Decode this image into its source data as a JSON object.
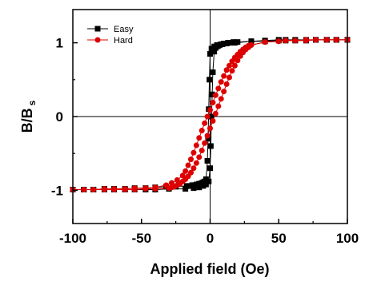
{
  "chart_data": {
    "type": "scatter",
    "xlabel": "Applied field (Oe)",
    "ylabel_main": "B/B",
    "ylabel_sub": "s",
    "xlim": [
      -100,
      100
    ],
    "ylim": [
      -1.45,
      1.45
    ],
    "xticks": [
      -100,
      -50,
      0,
      50,
      100
    ],
    "xtick_labels": [
      "-100",
      "-50",
      "0",
      "50",
      "100"
    ],
    "yticks": [
      -1,
      0,
      1
    ],
    "ytick_labels": [
      "-1",
      "0",
      "1"
    ],
    "reference_lines": {
      "x": 0,
      "y": 0
    },
    "legend_position": "top-left",
    "series": [
      {
        "name": "Easy",
        "color": "#000000",
        "marker": "square",
        "branches": [
          {
            "x": [
              -100,
              -92,
              -85,
              -77,
              -70,
              -62,
              -55,
              -47,
              -40,
              -32,
              -25,
              -17,
              -13,
              -12,
              -11,
              -10,
              -9,
              -8,
              -7,
              -6,
              -5,
              -4,
              -3,
              -2,
              -1.5,
              -1,
              -0.5,
              0,
              1,
              3,
              5,
              8,
              12,
              18,
              30,
              40,
              50,
              55,
              62,
              70,
              77,
              85,
              92,
              100
            ],
            "y": [
              -0.99,
              -0.99,
              -0.99,
              -0.98,
              -0.98,
              -0.98,
              -0.97,
              -0.97,
              -0.96,
              -0.95,
              -0.95,
              -0.94,
              -0.93,
              -0.93,
              -0.93,
              -0.92,
              -0.92,
              -0.91,
              -0.91,
              -0.9,
              -0.89,
              -0.88,
              -0.85,
              -0.6,
              -0.3,
              0.1,
              0.5,
              0.85,
              0.92,
              0.95,
              0.97,
              0.98,
              0.99,
              1.0,
              1.02,
              1.03,
              1.04,
              1.04,
              1.04,
              1.04,
              1.04,
              1.04,
              1.04,
              1.04
            ]
          },
          {
            "x": [
              100,
              92,
              85,
              77,
              70,
              62,
              55,
              50,
              40,
              30,
              20,
              17,
              15,
              13,
              12,
              11,
              10,
              9,
              8,
              7,
              6,
              5,
              4,
              3,
              2,
              1.5,
              1,
              0.5,
              0,
              -1,
              -3,
              -5,
              -8,
              -12,
              -18,
              -30,
              -40,
              -47,
              -55,
              -62,
              -70,
              -77,
              -85,
              -92,
              -100
            ],
            "y": [
              1.04,
              1.04,
              1.04,
              1.04,
              1.03,
              1.03,
              1.03,
              1.03,
              1.02,
              1.02,
              1.01,
              1.01,
              1.0,
              1.0,
              0.99,
              0.99,
              0.99,
              0.98,
              0.98,
              0.97,
              0.96,
              0.95,
              0.93,
              0.88,
              0.6,
              0.3,
              0.0,
              -0.4,
              -0.7,
              -0.88,
              -0.92,
              -0.94,
              -0.96,
              -0.97,
              -0.98,
              -0.98,
              -0.99,
              -0.99,
              -0.99,
              -0.99,
              -0.99,
              -0.99,
              -0.99,
              -0.99,
              -0.99
            ]
          }
        ]
      },
      {
        "name": "Hard",
        "color": "#dd0000",
        "marker": "circle",
        "branches": [
          {
            "x": [
              -100,
              -92,
              -85,
              -77,
              -70,
              -62,
              -55,
              -47,
              -40,
              -32,
              -28,
              -24,
              -20,
              -18,
              -16,
              -14,
              -12,
              -10,
              -8,
              -6,
              -4,
              -2,
              0,
              2,
              4,
              6,
              8,
              10,
              12,
              14,
              16,
              18,
              20,
              22,
              24,
              26,
              28,
              30,
              40,
              50,
              55,
              62,
              70,
              77,
              85,
              92,
              100
            ],
            "y": [
              -0.99,
              -0.99,
              -0.99,
              -0.98,
              -0.98,
              -0.98,
              -0.97,
              -0.97,
              -0.96,
              -0.93,
              -0.9,
              -0.86,
              -0.8,
              -0.74,
              -0.66,
              -0.58,
              -0.49,
              -0.39,
              -0.29,
              -0.19,
              -0.09,
              0.0,
              0.09,
              0.19,
              0.29,
              0.38,
              0.47,
              0.55,
              0.63,
              0.69,
              0.75,
              0.8,
              0.84,
              0.88,
              0.91,
              0.94,
              0.96,
              0.97,
              1.01,
              1.02,
              1.03,
              1.03,
              1.04,
              1.04,
              1.04,
              1.04,
              1.04
            ]
          },
          {
            "x": [
              100,
              92,
              85,
              77,
              70,
              62,
              55,
              50,
              40,
              30,
              28,
              26,
              24,
              22,
              20,
              18,
              16,
              14,
              12,
              10,
              8,
              6,
              4,
              2,
              0,
              -2,
              -4,
              -6,
              -8,
              -10,
              -12,
              -14,
              -16,
              -18,
              -20,
              -22,
              -24,
              -26,
              -28,
              -30,
              -40,
              -47,
              -55,
              -62,
              -70,
              -77,
              -85,
              -92,
              -100
            ],
            "y": [
              1.04,
              1.04,
              1.04,
              1.04,
              1.03,
              1.03,
              1.03,
              1.02,
              1.01,
              0.97,
              0.94,
              0.91,
              0.87,
              0.82,
              0.76,
              0.69,
              0.62,
              0.53,
              0.44,
              0.34,
              0.24,
              0.14,
              0.04,
              -0.06,
              -0.16,
              -0.26,
              -0.36,
              -0.46,
              -0.55,
              -0.63,
              -0.7,
              -0.76,
              -0.81,
              -0.85,
              -0.88,
              -0.91,
              -0.93,
              -0.95,
              -0.96,
              -0.97,
              -0.98,
              -0.98,
              -0.99,
              -0.99,
              -0.99,
              -0.99,
              -0.99,
              -0.99,
              -0.99
            ]
          }
        ]
      }
    ]
  }
}
